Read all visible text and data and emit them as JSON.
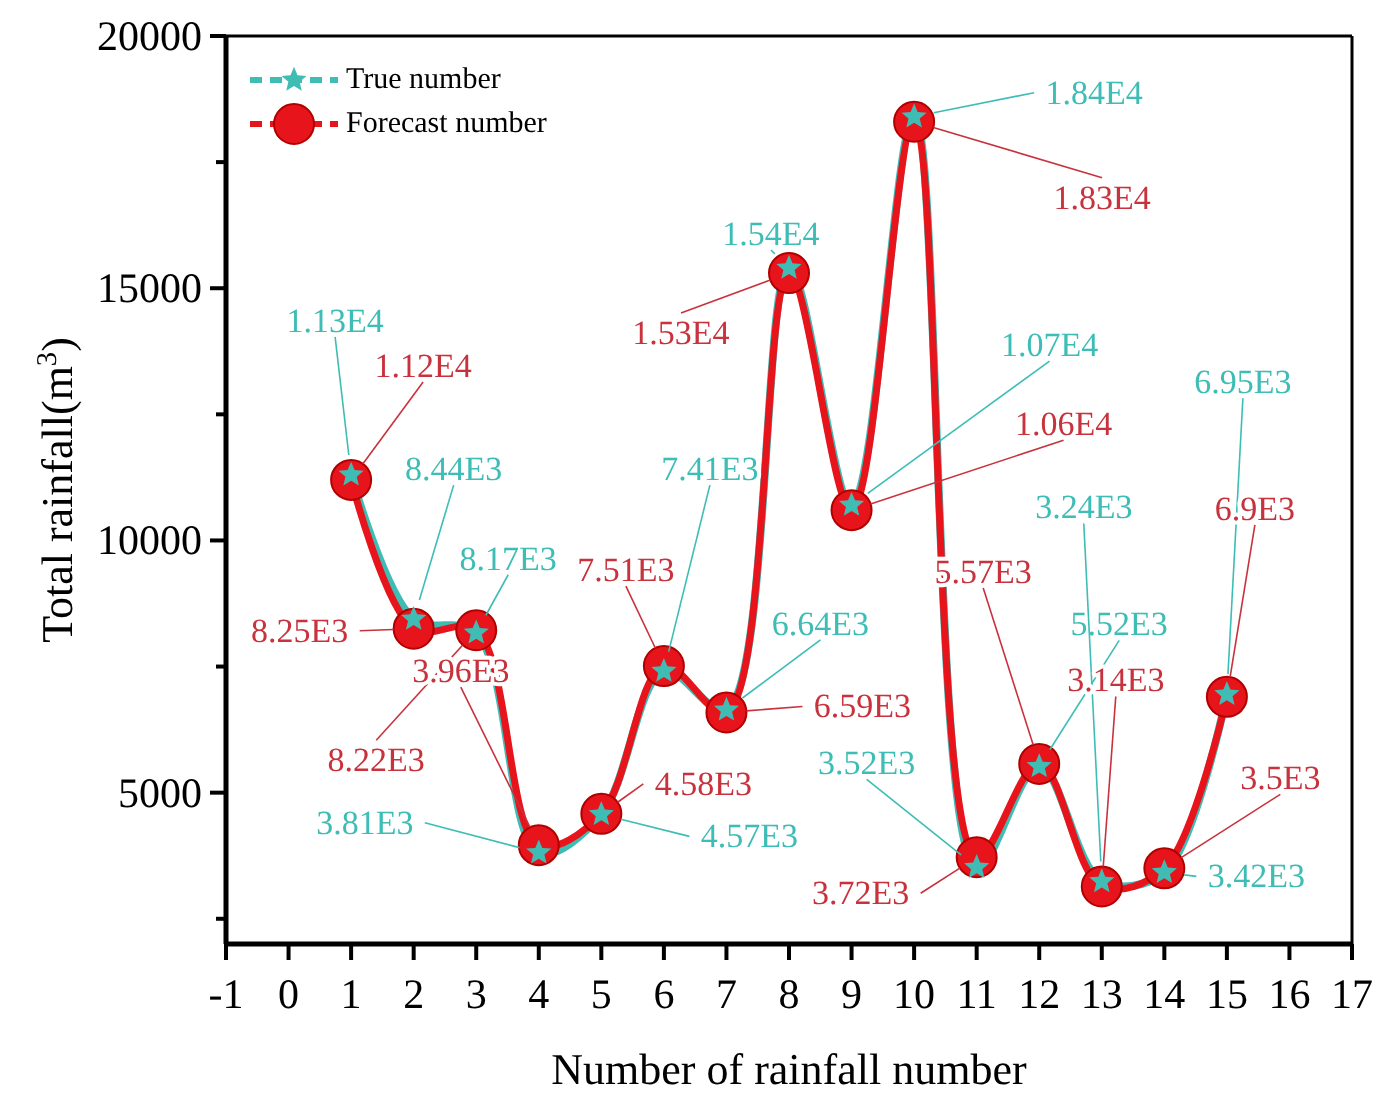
{
  "chart_data": {
    "type": "line",
    "xlabel": "Number of rainfall number",
    "ylabel": "Total rainfall(m$^{3}$)",
    "x": [
      1,
      2,
      3,
      4,
      5,
      6,
      7,
      8,
      9,
      10,
      11,
      12,
      13,
      14,
      15
    ],
    "xlim": [
      -1,
      17
    ],
    "xticks": [
      -1,
      0,
      1,
      2,
      3,
      4,
      5,
      6,
      7,
      8,
      9,
      10,
      11,
      12,
      13,
      14,
      15,
      16,
      17
    ],
    "ylim": [
      2000,
      20000
    ],
    "yticks": [
      {
        "value": 2500,
        "label": null
      },
      5000,
      {
        "value": 7500,
        "label": null
      },
      10000,
      {
        "value": 12500,
        "label": null
      },
      15000,
      {
        "value": 17500,
        "label": null
      },
      20000
    ],
    "grid": false,
    "legend": "top left",
    "line_style": "solid",
    "series": [
      {
        "name": "True number",
        "color": "#3fbdb4",
        "marker": "star",
        "values": [
          11300,
          8440,
          8170,
          3810,
          4570,
          7410,
          6640,
          15400,
          10700,
          18400,
          3520,
          5520,
          3240,
          3420,
          6950
        ],
        "value_labels": [
          "1.13E4",
          "8.44E3",
          "8.17E3",
          "3.81E3",
          "4.57E3",
          "7.41E3",
          "6.64E3",
          "1.54E4",
          "1.07E4",
          "1.84E4",
          "3.52E3",
          "5.52E3",
          "3.24E3",
          "3.42E3",
          "6.95E3"
        ]
      },
      {
        "name": "Forecast number",
        "color": "#e8141c",
        "marker": "circle",
        "values": [
          11200,
          8250,
          8220,
          3960,
          4580,
          7510,
          6590,
          15300,
          10600,
          18300,
          3720,
          5570,
          3140,
          3500,
          6900
        ],
        "value_labels": [
          "1.12E4",
          "8.25E3",
          "8.22E3",
          "3.96E3",
          "4.58E3",
          "7.51E3",
          "6.59E3",
          "1.53E4",
          "1.06E4",
          "1.83E4",
          "3.72E3",
          "5.57E3",
          "3.14E3",
          "3.5E3",
          "6.9E3"
        ]
      }
    ]
  }
}
